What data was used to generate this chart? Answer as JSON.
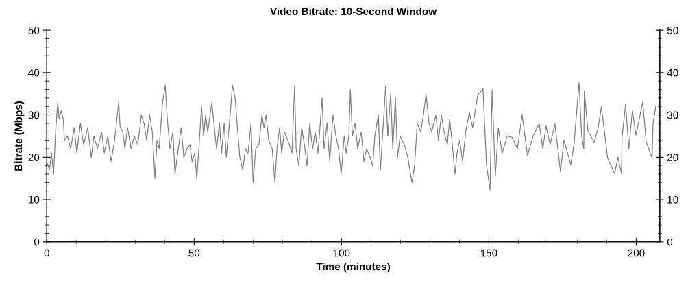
{
  "chart_data": {
    "type": "line",
    "title": "Video Bitrate: 10-Second Window",
    "xlabel": "Time (minutes)",
    "ylabel": "Bitrate (Mbps)",
    "xlim": [
      0,
      208
    ],
    "ylim": [
      0,
      50
    ],
    "y2lim": [
      0,
      50
    ],
    "xticks": [
      0,
      {
        "value": 10,
        "label": null
      },
      {
        "value": 20,
        "label": null
      },
      {
        "value": 30,
        "label": null
      },
      {
        "value": 40,
        "label": null
      },
      50,
      {
        "value": 60,
        "label": null
      },
      {
        "value": 70,
        "label": null
      },
      {
        "value": 80,
        "label": null
      },
      {
        "value": 90,
        "label": null
      },
      100,
      {
        "value": 110,
        "label": null
      },
      {
        "value": 120,
        "label": null
      },
      {
        "value": 130,
        "label": null
      },
      {
        "value": 140,
        "label": null
      },
      150,
      {
        "value": 160,
        "label": null
      },
      {
        "value": 170,
        "label": null
      },
      {
        "value": 180,
        "label": null
      },
      {
        "value": 190,
        "label": null
      },
      200
    ],
    "yticks": [
      0,
      {
        "value": 2,
        "label": null
      },
      {
        "value": 4,
        "label": null
      },
      {
        "value": 6,
        "label": null
      },
      {
        "value": 8,
        "label": null
      },
      10,
      {
        "value": 12,
        "label": null
      },
      {
        "value": 14,
        "label": null
      },
      {
        "value": 16,
        "label": null
      },
      {
        "value": 18,
        "label": null
      },
      20,
      {
        "value": 22,
        "label": null
      },
      {
        "value": 24,
        "label": null
      },
      {
        "value": 26,
        "label": null
      },
      {
        "value": 28,
        "label": null
      },
      30,
      {
        "value": 32,
        "label": null
      },
      {
        "value": 34,
        "label": null
      },
      {
        "value": 36,
        "label": null
      },
      {
        "value": 38,
        "label": null
      },
      40,
      {
        "value": 42,
        "label": null
      },
      {
        "value": 44,
        "label": null
      },
      {
        "value": 46,
        "label": null
      },
      {
        "value": 48,
        "label": null
      },
      50
    ],
    "y2ticks": [
      0,
      {
        "value": 2,
        "label": null
      },
      {
        "value": 4,
        "label": null
      },
      {
        "value": 6,
        "label": null
      },
      {
        "value": 8,
        "label": null
      },
      10,
      {
        "value": 12,
        "label": null
      },
      {
        "value": 14,
        "label": null
      },
      {
        "value": 16,
        "label": null
      },
      {
        "value": 18,
        "label": null
      },
      20,
      {
        "value": 22,
        "label": null
      },
      {
        "value": 24,
        "label": null
      },
      {
        "value": 26,
        "label": null
      },
      {
        "value": 28,
        "label": null
      },
      30,
      {
        "value": 32,
        "label": null
      },
      {
        "value": 34,
        "label": null
      },
      {
        "value": 36,
        "label": null
      },
      {
        "value": 38,
        "label": null
      },
      40,
      {
        "value": 42,
        "label": null
      },
      {
        "value": 44,
        "label": null
      },
      {
        "value": 46,
        "label": null
      },
      {
        "value": 48,
        "label": null
      },
      50
    ],
    "grid": false,
    "legend": false,
    "marker": "none",
    "line_style": "solid",
    "series": [
      {
        "color": "#808080",
        "x": [
          0.0,
          0.9,
          1.6,
          2.3,
          3.0,
          3.7,
          4.2,
          4.9,
          5.6,
          6.0,
          7.0,
          8.1,
          9.3,
          10.2,
          11.4,
          12.5,
          13.9,
          15.1,
          16.0,
          17.2,
          18.6,
          19.5,
          20.7,
          21.8,
          23.0,
          24.4,
          24.9,
          25.8,
          26.5,
          27.4,
          28.6,
          29.7,
          30.9,
          32.1,
          33.0,
          33.9,
          34.9,
          35.8,
          36.7,
          37.4,
          38.1,
          39.3,
          40.2,
          40.9,
          41.8,
          42.8,
          43.5,
          44.6,
          45.6,
          46.5,
          47.6,
          48.6,
          49.3,
          50.2,
          50.9,
          51.6,
          52.5,
          53.2,
          53.9,
          54.6,
          56.0,
          56.7,
          57.6,
          58.6,
          59.3,
          60.2,
          60.9,
          62.1,
          63.0,
          63.9,
          64.8,
          65.5,
          66.5,
          67.4,
          68.3,
          69.3,
          70.0,
          70.9,
          72.0,
          73.0,
          73.7,
          74.4,
          75.3,
          76.5,
          77.4,
          78.1,
          79.0,
          79.7,
          80.6,
          81.8,
          83.2,
          84.1,
          84.6,
          85.5,
          86.5,
          87.4,
          88.3,
          89.2,
          90.2,
          91.1,
          92.0,
          92.7,
          93.4,
          94.1,
          95.1,
          96.0,
          97.1,
          98.1,
          99.0,
          99.9,
          100.9,
          101.6,
          102.5,
          103.0,
          103.7,
          104.6,
          105.5,
          106.7,
          107.6,
          108.5,
          109.7,
          110.6,
          111.3,
          112.5,
          113.2,
          114.3,
          115.0,
          115.7,
          116.7,
          117.4,
          118.3,
          119.0,
          119.9,
          121.3,
          122.5,
          123.2,
          123.9,
          124.8,
          125.7,
          126.9,
          127.8,
          128.7,
          129.7,
          130.6,
          132.0,
          132.9,
          133.9,
          134.8,
          135.9,
          136.7,
          137.6,
          138.5,
          139.2,
          140.1,
          141.1,
          142.2,
          143.4,
          144.5,
          146.2,
          148.0,
          149.2,
          150.4,
          151.1,
          152.2,
          153.2,
          154.5,
          156.2,
          157.8,
          159.7,
          161.3,
          163.1,
          165.0,
          167.1,
          168.3,
          169.4,
          170.8,
          172.4,
          174.3,
          175.5,
          177.8,
          178.9,
          180.6,
          181.5,
          182.2,
          182.4,
          183.6,
          185.7,
          187.1,
          188.2,
          190.3,
          192.7,
          193.8,
          195.0,
          195.2,
          196.4,
          197.5,
          198.7,
          199.9,
          202.2,
          203.4,
          205.4,
          205.7,
          206.8
        ],
        "values": [
          19,
          17,
          21,
          16,
          26,
          33,
          29,
          31,
          29,
          24,
          25,
          22,
          27,
          21,
          28,
          23,
          27,
          20,
          25,
          22,
          26,
          21,
          25,
          19,
          24,
          33,
          27,
          26,
          22,
          27,
          22,
          25,
          23,
          30,
          28,
          24,
          30,
          26,
          15,
          24,
          22,
          33,
          37,
          29,
          22,
          26,
          16,
          22,
          27,
          20,
          22,
          23,
          19,
          21,
          15,
          22,
          32,
          25,
          30,
          26,
          33,
          28,
          22,
          28,
          21,
          28,
          20,
          29,
          37,
          34,
          26,
          20,
          17,
          22,
          21,
          28,
          14,
          22,
          23,
          30,
          27,
          30,
          24,
          22,
          14,
          22,
          27,
          21,
          26,
          24,
          21,
          37,
          22,
          18,
          27,
          23,
          18,
          28,
          22,
          26,
          21,
          27,
          34,
          22,
          28,
          19,
          30,
          25,
          22,
          16,
          25,
          21,
          25,
          36,
          25,
          28,
          22,
          26,
          19,
          22,
          20,
          18,
          25,
          30,
          17,
          29,
          37,
          25,
          35,
          22,
          34,
          20,
          25,
          23,
          20,
          17,
          14,
          18,
          28,
          26,
          30,
          35,
          28,
          26,
          30,
          24,
          30,
          26,
          23,
          29,
          23,
          16,
          21,
          24,
          19,
          26.3,
          30.6,
          27,
          34.6,
          36.2,
          18.2,
          12.3,
          35.9,
          15.5,
          26.9,
          20.9,
          25,
          24.7,
          22,
          30.1,
          20.4,
          25,
          27.9,
          22,
          27.4,
          23,
          27.9,
          16.6,
          24.1,
          18.2,
          23.1,
          37.6,
          25,
          22,
          35.7,
          26.3,
          23.6,
          27,
          31.9,
          19.8,
          16.1,
          20,
          16.1,
          24.7,
          32.5,
          22,
          31.1,
          25.2,
          33,
          23.6,
          19.8,
          27.9,
          32.7
        ]
      }
    ]
  }
}
